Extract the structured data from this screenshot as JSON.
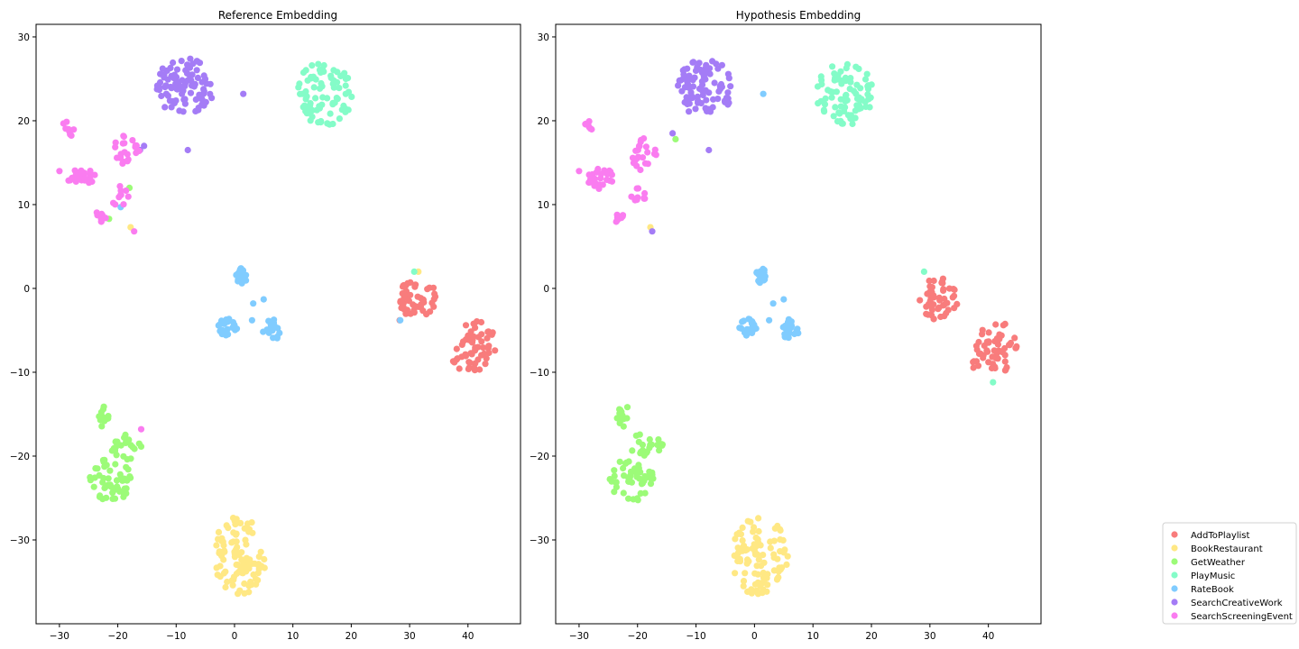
{
  "colors": {
    "AddToPlaylist": "#f87c7c",
    "BookRestaurant": "#ffe884",
    "GetWeather": "#9cfb78",
    "PlayMusic": "#84fcc8",
    "RateBook": "#80ccff",
    "SearchCreativeWork": "#a47cf6",
    "SearchScreeningEvent": "#fa7cf0"
  },
  "legend": {
    "entries": [
      "AddToPlaylist",
      "BookRestaurant",
      "GetWeather",
      "PlayMusic",
      "RateBook",
      "SearchCreativeWork",
      "SearchScreeningEvent"
    ]
  },
  "chart_data": [
    {
      "type": "scatter",
      "title": "Reference Embedding",
      "xlabel": "",
      "ylabel": "",
      "xlim": [
        -34,
        49
      ],
      "ylim": [
        -40,
        31.5
      ],
      "xticks": [
        -30,
        -20,
        -10,
        0,
        10,
        20,
        30,
        40
      ],
      "yticks": [
        30,
        20,
        10,
        0,
        -10,
        -20,
        -30
      ],
      "xtick_labels": [
        "−30",
        "−20",
        "−10",
        "0",
        "10",
        "20",
        "30",
        "40"
      ],
      "ytick_labels": [
        "30",
        "20",
        "10",
        "0",
        "−10",
        "−20",
        "−30"
      ],
      "grid": false,
      "series": [
        {
          "name": "AddToPlaylist",
          "clusters": [
            {
              "cx": 31.5,
              "cy": -1.2,
              "rx": 3.3,
              "ry": 2.6,
              "n": 48
            },
            {
              "cx": 41.5,
              "cy": -7.0,
              "rx": 3.6,
              "ry": 3.2,
              "n": 52
            },
            {
              "cx": 38.0,
              "cy": -9.0,
              "rx": 0.8,
              "ry": 0.8,
              "n": 5
            }
          ],
          "points": [
            [
              28.3,
              -3.8
            ]
          ]
        },
        {
          "name": "BookRestaurant",
          "clusters": [
            {
              "cx": 1.0,
              "cy": -32.0,
              "rx": 4.8,
              "ry": 4.8,
              "n": 95
            }
          ],
          "points": [
            [
              31.5,
              2.0
            ],
            [
              -17.8,
              7.3
            ]
          ]
        },
        {
          "name": "GetWeather",
          "clusters": [
            {
              "cx": -22.5,
              "cy": -15.2,
              "rx": 1.3,
              "ry": 1.3,
              "n": 14
            },
            {
              "cx": -18.5,
              "cy": -18.8,
              "rx": 2.8,
              "ry": 1.6,
              "n": 22
            },
            {
              "cx": -21.0,
              "cy": -22.8,
              "rx": 3.8,
              "ry": 2.6,
              "n": 50
            }
          ],
          "points": [
            [
              -18.0,
              12.0
            ],
            [
              -21.5,
              8.3
            ]
          ]
        },
        {
          "name": "PlayMusic",
          "clusters": [
            {
              "cx": 15.5,
              "cy": 23.2,
              "rx": 5.0,
              "ry": 3.8,
              "n": 82
            }
          ],
          "points": [
            [
              30.8,
              2.0
            ]
          ]
        },
        {
          "name": "RateBook",
          "clusters": [
            {
              "cx": 1.2,
              "cy": 1.5,
              "rx": 1.0,
              "ry": 0.9,
              "n": 22
            },
            {
              "cx": -1.2,
              "cy": -4.7,
              "rx": 1.6,
              "ry": 1.1,
              "n": 22
            },
            {
              "cx": 6.3,
              "cy": -5.0,
              "rx": 1.5,
              "ry": 1.4,
              "n": 22
            }
          ],
          "points": [
            [
              3.2,
              -1.8
            ],
            [
              5.0,
              -1.3
            ],
            [
              3.0,
              -3.8
            ],
            [
              -19.5,
              9.7
            ],
            [
              28.4,
              -3.8
            ]
          ]
        },
        {
          "name": "SearchCreativeWork",
          "clusters": [
            {
              "cx": -8.5,
              "cy": 24.0,
              "rx": 5.0,
              "ry": 3.5,
              "n": 92
            }
          ],
          "points": [
            [
              -16.2,
              16.5
            ],
            [
              1.5,
              23.2
            ],
            [
              -15.5,
              17.0
            ],
            [
              -8.0,
              16.5
            ]
          ]
        },
        {
          "name": "SearchScreeningEvent",
          "clusters": [
            {
              "cx": -28.5,
              "cy": 19.3,
              "rx": 1.2,
              "ry": 1.2,
              "n": 8
            },
            {
              "cx": -26.0,
              "cy": 13.1,
              "rx": 2.6,
              "ry": 1.3,
              "n": 30
            },
            {
              "cx": -18.5,
              "cy": 16.5,
              "rx": 2.2,
              "ry": 2.0,
              "n": 22
            },
            {
              "cx": -22.8,
              "cy": 8.8,
              "rx": 1.0,
              "ry": 0.9,
              "n": 9
            },
            {
              "cx": -19.8,
              "cy": 11.0,
              "rx": 1.8,
              "ry": 1.2,
              "n": 10
            }
          ],
          "points": [
            [
              -30.0,
              14.0
            ],
            [
              -17.2,
              6.8
            ],
            [
              -16.0,
              -16.8
            ]
          ]
        }
      ]
    },
    {
      "type": "scatter",
      "title": "Hypothesis Embedding",
      "xlabel": "",
      "ylabel": "",
      "xlim": [
        -34,
        49
      ],
      "ylim": [
        -40,
        31.5
      ],
      "xticks": [
        -30,
        -20,
        -10,
        0,
        10,
        20,
        30,
        40
      ],
      "yticks": [
        30,
        20,
        10,
        0,
        -10,
        -20,
        -30
      ],
      "xtick_labels": [
        "−30",
        "−20",
        "−10",
        "0",
        "10",
        "20",
        "30",
        "40"
      ],
      "ytick_labels": [
        "30",
        "20",
        "10",
        "0",
        "−10",
        "−20",
        "−30"
      ],
      "grid": false,
      "series": [
        {
          "name": "AddToPlaylist",
          "clusters": [
            {
              "cx": 31.5,
              "cy": -1.2,
              "rx": 3.3,
              "ry": 2.6,
              "n": 48
            },
            {
              "cx": 41.5,
              "cy": -7.0,
              "rx": 3.6,
              "ry": 3.2,
              "n": 52
            },
            {
              "cx": 38.0,
              "cy": -9.0,
              "rx": 0.8,
              "ry": 0.8,
              "n": 5
            }
          ],
          "points": []
        },
        {
          "name": "BookRestaurant",
          "clusters": [
            {
              "cx": 1.0,
              "cy": -32.0,
              "rx": 4.8,
              "ry": 4.8,
              "n": 95
            }
          ],
          "points": [
            [
              -17.8,
              7.3
            ]
          ]
        },
        {
          "name": "GetWeather",
          "clusters": [
            {
              "cx": -22.5,
              "cy": -15.2,
              "rx": 1.3,
              "ry": 1.3,
              "n": 14
            },
            {
              "cx": -18.5,
              "cy": -18.8,
              "rx": 2.8,
              "ry": 1.6,
              "n": 22
            },
            {
              "cx": -21.0,
              "cy": -22.8,
              "rx": 3.8,
              "ry": 2.6,
              "n": 50
            }
          ],
          "points": [
            [
              -13.5,
              17.8
            ]
          ]
        },
        {
          "name": "PlayMusic",
          "clusters": [
            {
              "cx": 15.5,
              "cy": 23.2,
              "rx": 5.0,
              "ry": 3.8,
              "n": 82
            }
          ],
          "points": [
            [
              29.0,
              2.0
            ],
            [
              40.8,
              -11.2
            ]
          ]
        },
        {
          "name": "RateBook",
          "clusters": [
            {
              "cx": 1.2,
              "cy": 1.5,
              "rx": 1.0,
              "ry": 0.9,
              "n": 22
            },
            {
              "cx": -1.2,
              "cy": -4.7,
              "rx": 1.6,
              "ry": 1.1,
              "n": 22
            },
            {
              "cx": 6.3,
              "cy": -5.0,
              "rx": 1.5,
              "ry": 1.4,
              "n": 22
            }
          ],
          "points": [
            [
              3.2,
              -1.8
            ],
            [
              5.0,
              -1.3
            ],
            [
              2.5,
              -3.8
            ],
            [
              1.5,
              23.2
            ]
          ]
        },
        {
          "name": "SearchCreativeWork",
          "clusters": [
            {
              "cx": -8.5,
              "cy": 24.0,
              "rx": 5.0,
              "ry": 3.5,
              "n": 92
            }
          ],
          "points": [
            [
              -17.5,
              6.8
            ],
            [
              -7.8,
              16.5
            ],
            [
              -14.0,
              18.5
            ]
          ]
        },
        {
          "name": "SearchScreeningEvent",
          "clusters": [
            {
              "cx": -28.5,
              "cy": 19.3,
              "rx": 1.2,
              "ry": 1.2,
              "n": 8
            },
            {
              "cx": -26.0,
              "cy": 13.1,
              "rx": 2.6,
              "ry": 1.3,
              "n": 30
            },
            {
              "cx": -19.0,
              "cy": 16.0,
              "rx": 2.2,
              "ry": 2.0,
              "n": 22
            },
            {
              "cx": -23.5,
              "cy": 8.8,
              "rx": 1.0,
              "ry": 0.9,
              "n": 9
            },
            {
              "cx": -20.0,
              "cy": 11.0,
              "rx": 1.8,
              "ry": 1.2,
              "n": 10
            }
          ],
          "points": [
            [
              -30.0,
              14.0
            ]
          ]
        }
      ]
    }
  ]
}
